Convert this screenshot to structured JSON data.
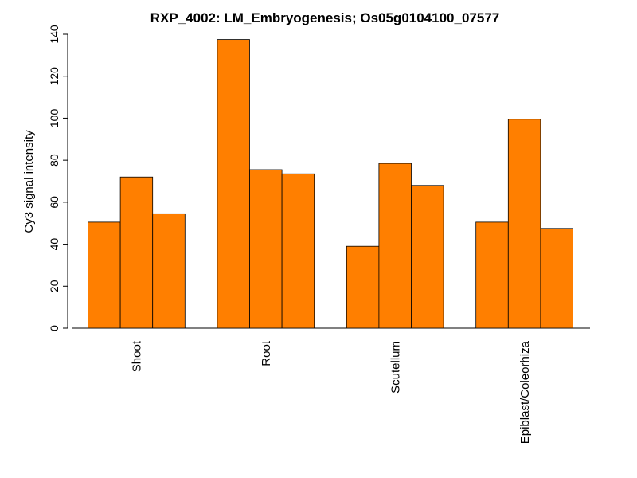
{
  "chart_data": {
    "type": "bar",
    "title": "RXP_4002: LM_Embryogenesis; Os05g0104100_07577",
    "xlabel": "",
    "ylabel": "Cy3 signal intensity",
    "ylim": [
      0,
      140
    ],
    "yticks": [
      0,
      20,
      40,
      60,
      80,
      100,
      120,
      140
    ],
    "categories": [
      "Shoot",
      "Root",
      "Scutellum",
      "Epiblast/Coleorhiza"
    ],
    "values": [
      [
        50.5,
        72.0,
        54.5
      ],
      [
        137.5,
        75.5,
        73.5
      ],
      [
        39.0,
        78.5,
        68.0
      ],
      [
        50.5,
        99.5,
        47.5
      ]
    ],
    "bar_color": "#FF7F00",
    "grid": false,
    "legend": "none"
  }
}
